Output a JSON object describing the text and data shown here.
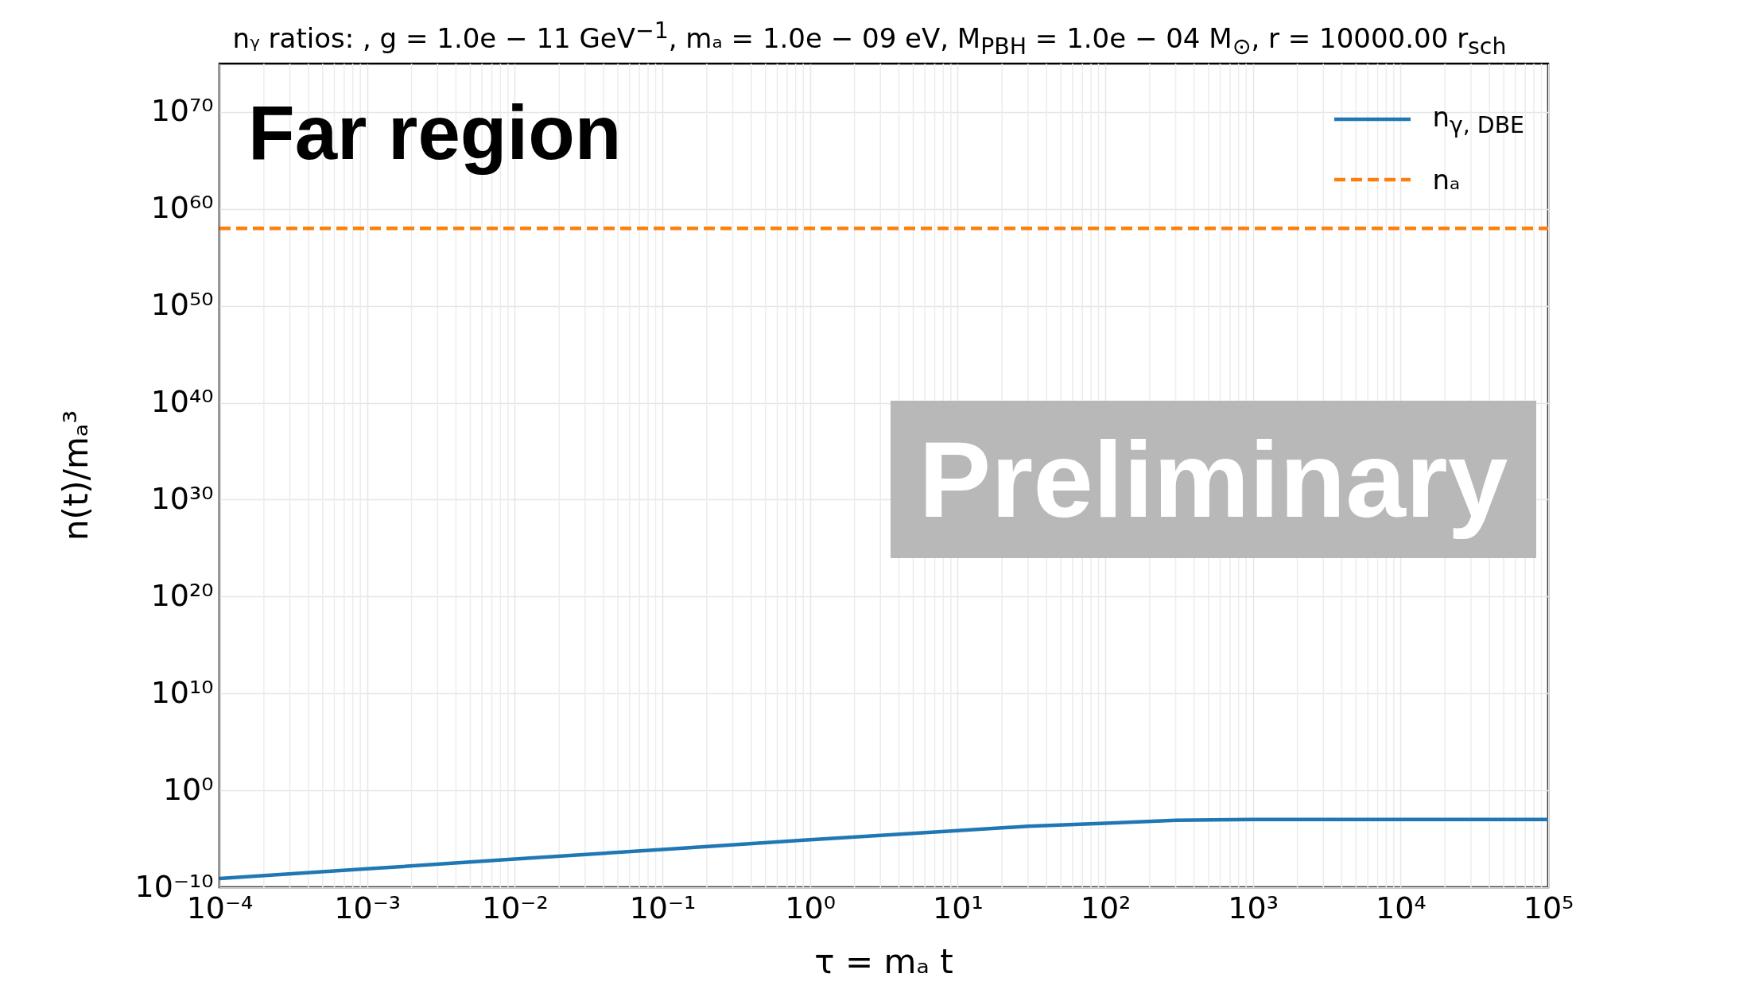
{
  "chart_data": {
    "type": "line",
    "title": "nᵧ ratios: ,  g = 1.0e − 11 GeV$^{−1}$,  mₐ = 1.0e − 09 eV,  M$_{PBH}$ = 1.0e − 04 M$_{⊙}$,  r = 10000.00 r$_{sch}$",
    "xlabel": "τ = mₐ t",
    "ylabel": "n(t)/mₐ³",
    "annotations": [
      "Far region",
      "Preliminary"
    ],
    "log": "xy",
    "grid": true,
    "legend": "top right",
    "xlim": [
      0.0001,
      100000
    ],
    "xticks": [
      {
        "value": 0.0001,
        "label": "10⁻⁴"
      },
      {
        "value": 0.001,
        "label": "10⁻³"
      },
      {
        "value": 0.01,
        "label": "10⁻²"
      },
      {
        "value": 0.1,
        "label": "10⁻¹"
      },
      {
        "value": 1,
        "label": "10⁰"
      },
      {
        "value": 10,
        "label": "10¹"
      },
      {
        "value": 100,
        "label": "10²"
      },
      {
        "value": 1000,
        "label": "10³"
      },
      {
        "value": 10000,
        "label": "10⁴"
      },
      {
        "value": 100000,
        "label": "10⁵"
      }
    ],
    "ylim": [
      1e-10,
      1e+75
    ],
    "yticks": [
      {
        "value": 1e-10,
        "label": "10⁻¹⁰"
      },
      {
        "value": 1,
        "label": "10⁰"
      },
      {
        "value": 10000000000.0,
        "label": "10¹⁰"
      },
      {
        "value": 1e+20,
        "label": "10²⁰"
      },
      {
        "value": 1e+30,
        "label": "10³⁰"
      },
      {
        "value": 1e+40,
        "label": "10⁴⁰"
      },
      {
        "value": 1e+50,
        "label": "10⁵⁰"
      },
      {
        "value": 1e+60,
        "label": "10⁶⁰"
      },
      {
        "value": 1e+70,
        "label": "10⁷⁰"
      }
    ],
    "series": [
      {
        "name": "n$_{γ, DBE}$",
        "color": "#1f77b4",
        "line_style": "solid",
        "x": [
          0.0001,
          0.001,
          0.01,
          0.1,
          1,
          10,
          30,
          100,
          300,
          1000,
          10000,
          100000
        ],
        "values": [
          8e-10,
          8e-09,
          8e-08,
          8e-07,
          8e-06,
          7e-05,
          0.0002,
          0.0004,
          0.0008,
          0.001,
          0.001,
          0.001
        ]
      },
      {
        "name": "nₐ",
        "color": "#ff7f0e",
        "line_style": "dashed",
        "x": [
          0.0001,
          100000
        ],
        "values": [
          1e+58,
          1e+58
        ]
      }
    ]
  }
}
